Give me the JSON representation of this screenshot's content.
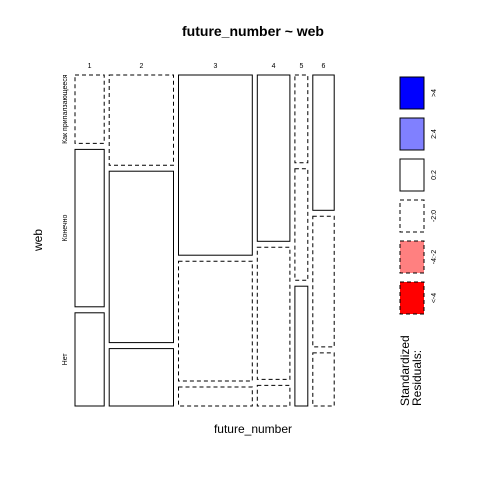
{
  "chart_data": {
    "type": "mosaic",
    "title": "future_number ~ web",
    "xlabel": "future_number",
    "ylabel": "web",
    "x_categories": [
      "1",
      "2",
      "3",
      "4",
      "5",
      "6"
    ],
    "y_categories": [
      "Как припалзающееся",
      "Конечно",
      "Нет"
    ],
    "column_proportions": [
      0.1097,
      0.2419,
      0.2774,
      0.1226,
      0.0484,
      0.0806
    ],
    "cell_proportions": [
      [
        0.2143,
        0.4935,
        0.2922
      ],
      [
        0.2828,
        0.5373,
        0.1799
      ],
      [
        0.5648,
        0.3756,
        0.0597
      ],
      [
        0.5212,
        0.4141,
        0.0647
      ],
      [
        0.2751,
        0.3494,
        0.3755
      ],
      [
        0.424,
        0.4094,
        0.1666
      ]
    ],
    "residual_sign": [
      [
        "negative",
        "positive",
        "positive"
      ],
      [
        "negative",
        "positive",
        "positive"
      ],
      [
        "positive",
        "negative",
        "negative"
      ],
      [
        "positive",
        "negative",
        "negative"
      ],
      [
        "negative",
        "negative",
        "positive"
      ],
      [
        "positive",
        "negative",
        "negative"
      ]
    ],
    "legend": {
      "title_line1": "Standardized",
      "title_line2": "Residuals:",
      "entries": [
        {
          "label": ">4",
          "fill": "#0000ff",
          "border": "solid"
        },
        {
          "label": "2:4",
          "fill": "#8080ff",
          "border": "solid"
        },
        {
          "label": "0:2",
          "fill": "#ffffff",
          "border": "solid"
        },
        {
          "label": "-2:0",
          "fill": "#ffffff",
          "border": "dashed"
        },
        {
          "label": "-4:-2",
          "fill": "#ff8080",
          "border": "dashed"
        },
        {
          "label": "<-4",
          "fill": "#ff0000",
          "border": "dashed"
        }
      ]
    }
  }
}
